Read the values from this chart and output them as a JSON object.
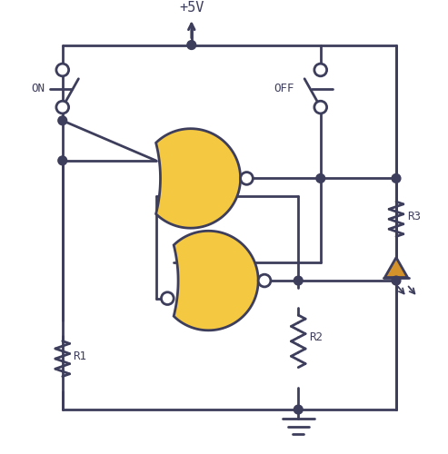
{
  "bg_color": "#ffffff",
  "line_color": "#3d3d5c",
  "gate_fill": "#f5c842",
  "led_fill": "#d4922a",
  "line_width": 2.0,
  "title": "+5V",
  "label_on": "ON",
  "label_off": "OFF",
  "label_r1": "R1",
  "label_r2": "R2",
  "label_r3": "R3",
  "figsize": [
    4.93,
    5.0
  ],
  "dpi": 100,
  "xlim": [
    0,
    493
  ],
  "ylim": [
    0,
    500
  ]
}
